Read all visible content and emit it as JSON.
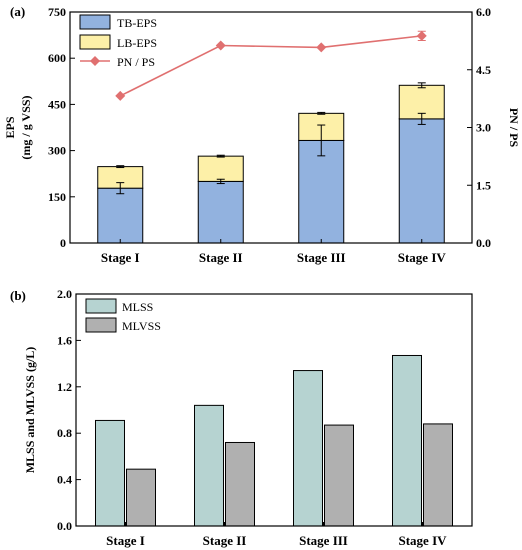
{
  "colors": {
    "tb_eps": "#92b2df",
    "lb_eps": "#fdf0a8",
    "pn_ps": "#e07070",
    "mlss": "#b6d3d1",
    "mlvss": "#b0b0b0",
    "axis": "#000000"
  },
  "chart_data": [
    {
      "panel_label": "(a)",
      "type": "bar",
      "stacked": true,
      "categories": [
        "Stage I",
        "Stage II",
        "Stage III",
        "Stage IV"
      ],
      "ylabel_line1": "EPS",
      "ylabel_line2": "(mg / g VSS)",
      "y2label": "PN / PS",
      "ylim": [
        0,
        750
      ],
      "yticks": [
        "0",
        "150",
        "300",
        "450",
        "600",
        "750"
      ],
      "y2lim": [
        0,
        6
      ],
      "y2ticks": [
        "0.0",
        "1.5",
        "3.0",
        "4.5",
        "6.0"
      ],
      "legend_position": "top-left",
      "series": [
        {
          "name": "TB-EPS",
          "values": [
            178,
            200,
            333,
            403
          ],
          "errors": [
            18,
            7,
            50,
            18
          ]
        },
        {
          "name": "LB-EPS",
          "values": [
            70,
            82,
            88,
            109
          ],
          "errors": [
            3,
            3,
            3,
            8
          ]
        },
        {
          "name": "PN / PS",
          "type": "line",
          "axis": "right",
          "values": [
            3.82,
            5.13,
            5.08,
            5.38
          ],
          "errors": [
            0,
            0,
            0,
            0.12
          ]
        }
      ]
    },
    {
      "panel_label": "(b)",
      "type": "bar",
      "categories": [
        "Stage I",
        "Stage II",
        "Stage III",
        "Stage IV"
      ],
      "ylabel": "MLSS and MLVSS (g/L)",
      "ylim": [
        0,
        2.0
      ],
      "yticks": [
        "0.0",
        "0.4",
        "0.8",
        "1.2",
        "1.6",
        "2.0"
      ],
      "legend_position": "top-left",
      "series": [
        {
          "name": "MLSS",
          "values": [
            0.91,
            1.04,
            1.34,
            1.47
          ]
        },
        {
          "name": "MLVSS",
          "values": [
            0.49,
            0.72,
            0.87,
            0.88
          ]
        }
      ]
    }
  ]
}
